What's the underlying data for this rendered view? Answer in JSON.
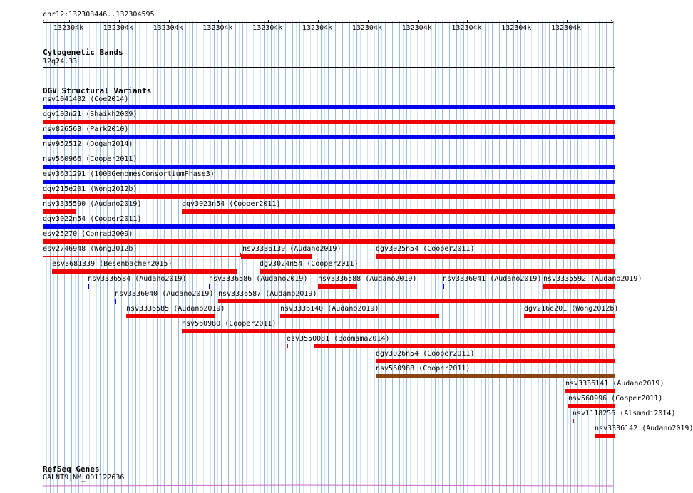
{
  "locus": "chr12:132303446..132304595",
  "ruler": {
    "tick_labels": [
      "132304k",
      "132304k",
      "132304k",
      "132304k",
      "132304k",
      "132304k",
      "132304k",
      "132304k",
      "132304k",
      "132304k",
      "132304k"
    ]
  },
  "cytoband": {
    "title": "Cytogenetic Bands",
    "band": "12q24.33"
  },
  "dgv": {
    "title": "DGV Structural Variants",
    "colors": {
      "blue": "#0000ee",
      "red": "#ee0000",
      "brown": "#8b4513"
    },
    "features": [
      {
        "label": "nsv1041402 (Coe2014)",
        "color": "blue"
      },
      {
        "label": "dgv103n21 (Shaikh2009)",
        "color": "red"
      },
      {
        "label": "nsv826563 (Park2010)",
        "color": "blue"
      },
      {
        "label": "nsv952512 (Dogan2014)",
        "color": "red"
      },
      {
        "label": "nsv560966 (Cooper2011)",
        "color": "blue"
      },
      {
        "label": "esv3631291 (1000GenomesConsortiumPhase3)",
        "color": "blue"
      },
      {
        "label": "dgv215e201 (Wong2012b)",
        "color": "red"
      },
      {
        "label": "nsv3335590 (Audano2019)",
        "color": "red"
      },
      {
        "label": "dgv3023n54 (Cooper2011)",
        "color": "red"
      },
      {
        "label": "dgv3022n54 (Cooper2011)",
        "color": "blue"
      },
      {
        "label": "esv25270 (Conrad2009)",
        "color": "red"
      },
      {
        "label": "esv2746948 (Wong2012b)",
        "color": "red"
      },
      {
        "label": "nsv3336139 (Audano2019)",
        "color": "red"
      },
      {
        "label": "dgv3025n54 (Cooper2011)",
        "color": "red"
      },
      {
        "label": "esv3681339 (Besenbacher2015)",
        "color": "red"
      },
      {
        "label": "dgv3024n54 (Cooper2011)",
        "color": "red"
      },
      {
        "label": "nsv3336584 (Audano2019)",
        "color": "blue"
      },
      {
        "label": "nsv3336586 (Audano2019)",
        "color": "blue"
      },
      {
        "label": "nsv3336588 (Audano2019)",
        "color": "red"
      },
      {
        "label": "nsv3336041 (Audano2019)",
        "color": "blue"
      },
      {
        "label": "nsv3335592 (Audano2019)",
        "color": "red"
      },
      {
        "label": "nsv3336040 (Audano2019)",
        "color": "blue"
      },
      {
        "label": "nsv3336587 (Audano2019)",
        "color": "red"
      },
      {
        "label": "nsv3336585 (Audano2019)",
        "color": "red"
      },
      {
        "label": "nsv3336140 (Audano2019)",
        "color": "red"
      },
      {
        "label": "dgv216e201 (Wong2012b)",
        "color": "red"
      },
      {
        "label": "nsv560980 (Cooper2011)",
        "color": "red"
      },
      {
        "label": "esv3550081 (Boomsma2014)",
        "color": "red"
      },
      {
        "label": "dgv3026n54 (Cooper2011)",
        "color": "red"
      },
      {
        "label": "nsv560988 (Cooper2011)",
        "color": "brown"
      },
      {
        "label": "nsv3336141 (Audano2019)",
        "color": "red"
      },
      {
        "label": "nsv560996 (Cooper2011)",
        "color": "red"
      },
      {
        "label": "nsv1118256 (Alsmadi2014)",
        "color": "red"
      },
      {
        "label": "nsv3336142 (Audano2019)",
        "color": "red"
      }
    ]
  },
  "refseq": {
    "title": "RefSeq Genes",
    "gene": "GALNT9|NM_001122636",
    "color": "#cc66cc"
  },
  "colors": {
    "grid_major": "#99bbdd",
    "grid_minor": "#d4e4f2"
  }
}
